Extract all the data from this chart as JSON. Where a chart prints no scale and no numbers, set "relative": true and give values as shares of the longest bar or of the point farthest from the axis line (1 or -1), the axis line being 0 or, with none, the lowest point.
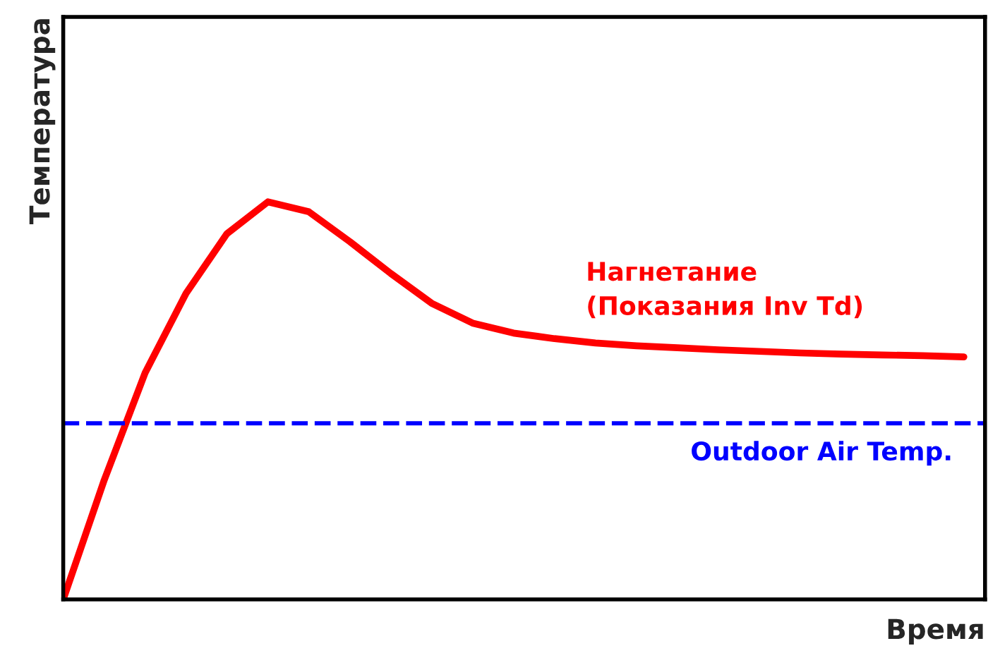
{
  "chart_data": {
    "type": "line",
    "relative": true,
    "xlabel": "Время",
    "ylabel": "Температура",
    "categories": [
      null,
      null,
      null,
      null,
      null,
      null,
      null,
      null,
      null,
      null,
      null,
      null,
      null,
      null,
      null,
      null,
      null,
      null,
      null,
      null,
      null,
      null,
      null
    ],
    "series": [
      {
        "name": "Нагнетание\n(Показания Inv Td)",
        "color": "#ff0000",
        "values": [
          0,
          0.3,
          0.57,
          0.77,
          0.92,
          1.0,
          0.975,
          0.9,
          0.82,
          0.745,
          0.695,
          0.67,
          0.656,
          0.645,
          0.638,
          0.633,
          0.628,
          0.624,
          0.62,
          0.617,
          0.615,
          0.613,
          0.61
        ]
      }
    ],
    "ref_lines": [
      {
        "axis": "y",
        "value": 0.443,
        "label": "Outdoor Air Temp.",
        "color": "#0000ff",
        "line_style": "dashed"
      }
    ],
    "legend": false,
    "marker": "none",
    "line_style": "solid"
  }
}
